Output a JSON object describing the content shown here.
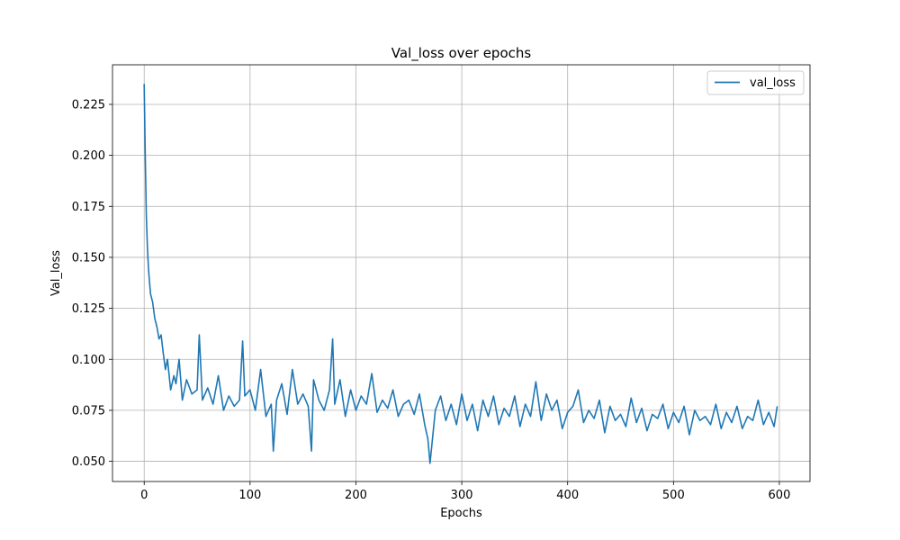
{
  "chart_data": {
    "type": "line",
    "title": "Val_loss over epochs",
    "xlabel": "Epochs",
    "ylabel": "Val_loss",
    "xlim": [
      -29.95,
      628.95
    ],
    "ylim": [
      0.0401,
      0.2444
    ],
    "xticks": [
      0,
      100,
      200,
      300,
      400,
      500,
      600
    ],
    "xtick_labels": [
      "0",
      "100",
      "200",
      "300",
      "400",
      "500",
      "600"
    ],
    "yticks": [
      0.05,
      0.075,
      0.1,
      0.125,
      0.15,
      0.175,
      0.2,
      0.225
    ],
    "ytick_labels": [
      "0.050",
      "0.075",
      "0.100",
      "0.125",
      "0.150",
      "0.175",
      "0.200",
      "0.225"
    ],
    "grid": true,
    "legend_position": "upper right",
    "series": [
      {
        "name": "val_loss",
        "color": "#1f77b4",
        "x": [
          0,
          1,
          2,
          3,
          4,
          5,
          6,
          8,
          10,
          12,
          14,
          16,
          18,
          20,
          22,
          25,
          28,
          30,
          33,
          36,
          40,
          45,
          50,
          52,
          55,
          60,
          65,
          70,
          75,
          80,
          85,
          90,
          93,
          95,
          100,
          105,
          110,
          115,
          120,
          122,
          125,
          130,
          135,
          140,
          145,
          150,
          155,
          158,
          160,
          165,
          170,
          175,
          178,
          180,
          185,
          190,
          195,
          200,
          205,
          210,
          215,
          220,
          225,
          230,
          235,
          240,
          245,
          250,
          255,
          260,
          265,
          268,
          270,
          275,
          280,
          285,
          290,
          295,
          300,
          305,
          310,
          315,
          320,
          325,
          330,
          335,
          340,
          345,
          350,
          355,
          360,
          365,
          370,
          375,
          380,
          385,
          390,
          395,
          400,
          405,
          410,
          415,
          420,
          425,
          430,
          435,
          440,
          445,
          450,
          455,
          460,
          465,
          470,
          475,
          480,
          485,
          490,
          495,
          500,
          505,
          510,
          515,
          520,
          525,
          530,
          535,
          540,
          545,
          550,
          555,
          560,
          565,
          570,
          575,
          580,
          585,
          590,
          595,
          598
        ],
        "y": [
          0.235,
          0.2,
          0.17,
          0.155,
          0.145,
          0.138,
          0.132,
          0.128,
          0.12,
          0.116,
          0.11,
          0.112,
          0.103,
          0.095,
          0.1,
          0.085,
          0.092,
          0.088,
          0.1,
          0.08,
          0.09,
          0.083,
          0.085,
          0.112,
          0.08,
          0.086,
          0.078,
          0.092,
          0.075,
          0.082,
          0.077,
          0.08,
          0.109,
          0.082,
          0.085,
          0.075,
          0.095,
          0.072,
          0.078,
          0.055,
          0.08,
          0.088,
          0.073,
          0.095,
          0.078,
          0.083,
          0.077,
          0.055,
          0.09,
          0.08,
          0.075,
          0.085,
          0.11,
          0.078,
          0.09,
          0.072,
          0.085,
          0.075,
          0.082,
          0.078,
          0.093,
          0.074,
          0.08,
          0.076,
          0.085,
          0.072,
          0.078,
          0.08,
          0.073,
          0.083,
          0.068,
          0.061,
          0.049,
          0.075,
          0.082,
          0.07,
          0.078,
          0.068,
          0.083,
          0.07,
          0.078,
          0.065,
          0.08,
          0.072,
          0.082,
          0.068,
          0.076,
          0.072,
          0.082,
          0.067,
          0.078,
          0.072,
          0.089,
          0.07,
          0.083,
          0.075,
          0.08,
          0.066,
          0.074,
          0.077,
          0.085,
          0.069,
          0.075,
          0.071,
          0.08,
          0.064,
          0.077,
          0.07,
          0.073,
          0.067,
          0.081,
          0.069,
          0.076,
          0.065,
          0.073,
          0.071,
          0.078,
          0.066,
          0.074,
          0.069,
          0.077,
          0.063,
          0.075,
          0.07,
          0.072,
          0.068,
          0.078,
          0.066,
          0.074,
          0.069,
          0.077,
          0.066,
          0.072,
          0.07,
          0.08,
          0.068,
          0.074,
          0.067,
          0.077
        ]
      }
    ]
  }
}
